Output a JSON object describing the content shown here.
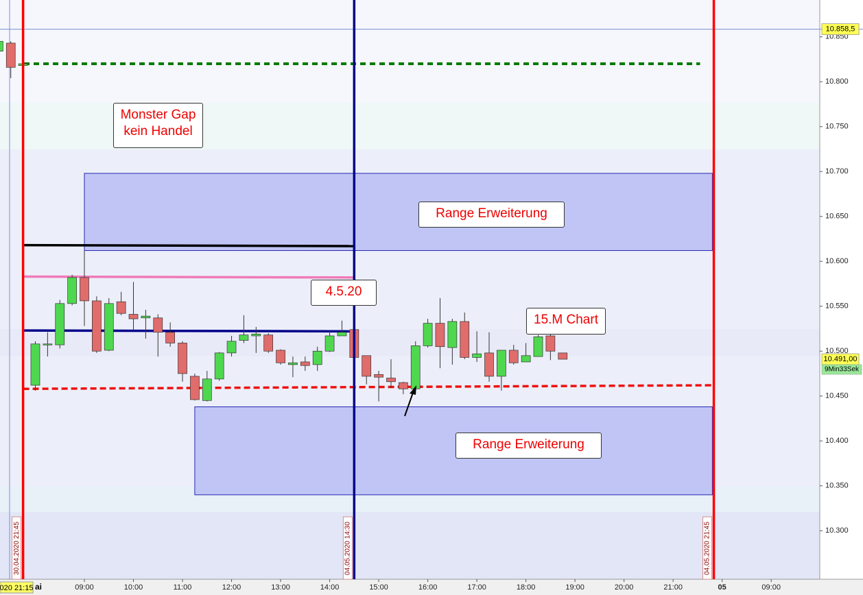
{
  "chart_data": {
    "type": "candlestick",
    "x": [
      7.25,
      7.5,
      7.75,
      8,
      8.25,
      8.5,
      8.75,
      9,
      9.25,
      9.5,
      9.75,
      10,
      10.25,
      10.5,
      10.75,
      11,
      11.25,
      11.5,
      11.75,
      12,
      12.25,
      12.5,
      12.75,
      13,
      13.25,
      13.5,
      13.75,
      14,
      14.25,
      14.5,
      14.75,
      15,
      15.25,
      15.5,
      15.75,
      16,
      16.25,
      16.5,
      16.75,
      17,
      17.25,
      17.5,
      17.75,
      18,
      18.25,
      18.5,
      18.75
    ],
    "open": [
      10834,
      10843,
      10818,
      10462,
      10507,
      10507,
      10553,
      10582,
      10556,
      10501,
      10555,
      10541,
      10537,
      10537,
      10521,
      10509,
      10472,
      10445,
      10469,
      10498,
      10512,
      10517,
      10518,
      10501,
      10485,
      10488,
      10485,
      10500,
      10517,
      10524,
      10495,
      10474,
      10470,
      10465,
      10458,
      10506,
      10531,
      10504,
      10533,
      10493,
      10498,
      10472,
      10501,
      10488,
      10494,
      10517,
      10498
    ],
    "high": [
      10847,
      10845,
      10822,
      10511,
      10521,
      10557,
      10585,
      10612,
      10561,
      10559,
      10566,
      10577,
      10546,
      10541,
      10532,
      10511,
      10475,
      10478,
      10499,
      10517,
      10540,
      10527,
      10520,
      10502,
      10494,
      10494,
      10505,
      10523,
      10534,
      10525,
      10495,
      10478,
      10491,
      10466,
      10511,
      10536,
      10559,
      10536,
      10543,
      10522,
      10521,
      10501,
      10507,
      10509,
      10518,
      10519,
      10498
    ],
    "low": [
      10832,
      10804,
      10817,
      10456,
      10494,
      10503,
      10551,
      10528,
      10498,
      10500,
      10540,
      10523,
      10514,
      10494,
      10505,
      10466,
      10445,
      10444,
      10467,
      10494,
      10509,
      10498,
      10498,
      10485,
      10471,
      10478,
      10478,
      10499,
      10517,
      10492,
      10463,
      10444,
      10459,
      10452,
      10458,
      10504,
      10481,
      10485,
      10491,
      10488,
      10466,
      10456,
      10485,
      10488,
      10494,
      10490,
      10491
    ],
    "close": [
      10845,
      10816,
      10820,
      10508,
      10508,
      10553,
      10582,
      10556,
      10500,
      10553,
      10542,
      10536,
      10539,
      10521,
      10509,
      10475,
      10446,
      10469,
      10498,
      10511,
      10518,
      10519,
      10500,
      10487,
      10487,
      10484,
      10500,
      10517,
      10521,
      10493,
      10472,
      10471,
      10466,
      10458,
      10506,
      10531,
      10505,
      10533,
      10493,
      10497,
      10472,
      10501,
      10487,
      10495,
      10516,
      10500,
      10491
    ],
    "up_color": "#4fd84f",
    "down_color": "#e06c6c",
    "xlim": [
      7.28,
      23.99
    ],
    "ylim": [
      10246,
      10891
    ],
    "xticks": [
      {
        "value": 9,
        "label": "09:00"
      },
      {
        "value": 10,
        "label": "10:00"
      },
      {
        "value": 11,
        "label": "11:00"
      },
      {
        "value": 12,
        "label": "12:00"
      },
      {
        "value": 13,
        "label": "13:00"
      },
      {
        "value": 14,
        "label": "14:00"
      },
      {
        "value": 15,
        "label": "15:00"
      },
      {
        "value": 16,
        "label": "16:00"
      },
      {
        "value": 17,
        "label": "17:00"
      },
      {
        "value": 18,
        "label": "18:00"
      },
      {
        "value": 19,
        "label": "19:00"
      },
      {
        "value": 20,
        "label": "20:00"
      },
      {
        "value": 21,
        "label": "21:00"
      },
      {
        "value": 22,
        "label": "05"
      },
      {
        "value": 23,
        "label": "09:00"
      }
    ],
    "yticks": [
      {
        "value": 10300,
        "label": "10.300"
      },
      {
        "value": 10350,
        "label": "10.350"
      },
      {
        "value": 10400,
        "label": "10.400"
      },
      {
        "value": 10450,
        "label": "10.450"
      },
      {
        "value": 10500,
        "label": "10.500"
      },
      {
        "value": 10550,
        "label": "10.550"
      },
      {
        "value": 10600,
        "label": "10.600"
      },
      {
        "value": 10650,
        "label": "10.650"
      },
      {
        "value": 10700,
        "label": "10.700"
      },
      {
        "value": 10750,
        "label": "10.750"
      },
      {
        "value": 10800,
        "label": "10.800"
      },
      {
        "value": 10850,
        "label": "10.850"
      }
    ],
    "price_labels": [
      {
        "value": 10858.5,
        "label": "10.858,5"
      },
      {
        "value": 10491,
        "label": "10.491,00"
      }
    ],
    "countdown": "9Min33Sek",
    "cursor_time_label": "020 21:15",
    "date_label": "ai",
    "markers": [
      {
        "x": 7.75,
        "label": "30.04.2020 21:45",
        "color": "#ff0000"
      },
      {
        "x": 14.5,
        "label": "04.05.2020 14:30",
        "color": "#00008b"
      },
      {
        "x": 21.83,
        "label": "04.05.2020 21:45",
        "color": "#ff0000"
      }
    ],
    "levels": [
      {
        "x": [
          7.77,
          21.55
        ],
        "values": [
          10820,
          10820
        ],
        "color": "#007a00",
        "style": "dotted"
      },
      {
        "x": [
          7.75,
          14.5
        ],
        "values": [
          10618,
          10617
        ],
        "color": "#000000",
        "style": "solid"
      },
      {
        "x": [
          7.75,
          14.5
        ],
        "values": [
          10583,
          10582
        ],
        "color": "#f07ab8",
        "style": "solid"
      },
      {
        "x": [
          7.75,
          14.5
        ],
        "values": [
          10523,
          10522
        ],
        "color": "#00008b",
        "style": "solid"
      },
      {
        "x": [
          7.75,
          21.83
        ],
        "values": [
          10458,
          10462
        ],
        "color": "#ee1111",
        "style": "dashed"
      }
    ],
    "zones": [
      {
        "x": [
          9,
          21.8
        ],
        "y": [
          10698,
          10612
        ]
      },
      {
        "x": [
          11.25,
          21.8
        ],
        "y": [
          10438,
          10340
        ]
      }
    ],
    "annotations": [
      [
        "Monster Gap",
        "kein Handel"
      ],
      [
        "Range Erweiterung"
      ],
      [
        "4.5.20"
      ],
      [
        "15.M Chart"
      ],
      [
        "Range Erweiterung"
      ]
    ]
  }
}
